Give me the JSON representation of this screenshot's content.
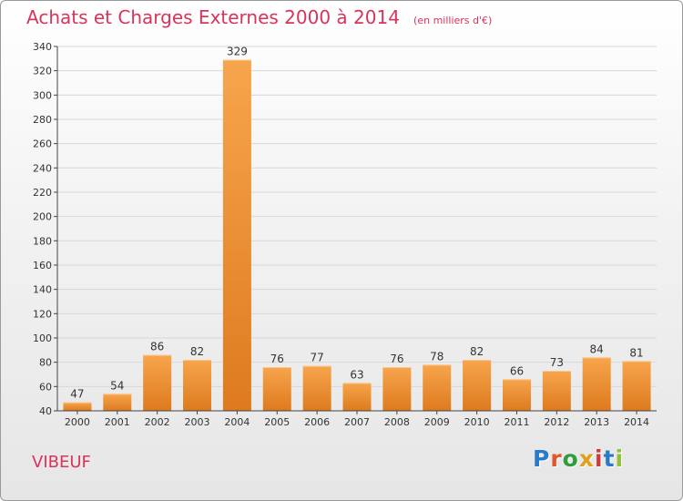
{
  "title": "Achats et Charges Externes 2000 à 2014",
  "subtitle": "(en milliers d'€)",
  "commune": "VIBEUF",
  "logo": {
    "text": "Proxiti",
    "letter_colors": [
      "#2b79c9",
      "#e0572b",
      "#2e9d3a",
      "#e0a01a",
      "#cf3b3b",
      "#2b79c9",
      "#8fc23a"
    ]
  },
  "colors": {
    "title": "#d9345a",
    "bar_light": "#f7a54d",
    "bar_dark": "#de7a1e",
    "grid": "#d8d8d8",
    "axis": "#444444"
  },
  "chart_data": {
    "type": "bar",
    "categories": [
      "2000",
      "2001",
      "2002",
      "2003",
      "2004",
      "2005",
      "2006",
      "2007",
      "2008",
      "2009",
      "2010",
      "2011",
      "2012",
      "2013",
      "2014"
    ],
    "values": [
      47,
      54,
      86,
      82,
      329,
      76,
      77,
      63,
      76,
      78,
      82,
      66,
      73,
      84,
      81
    ],
    "ylim": [
      40,
      340
    ],
    "ytick_step": 20,
    "grid": true,
    "data_labels": true
  }
}
